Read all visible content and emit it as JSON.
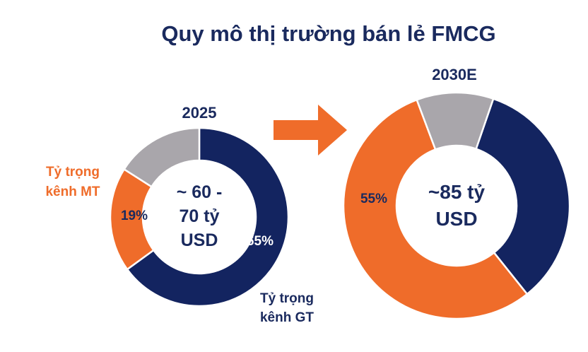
{
  "title": "Quy mô thị trường bán lẻ FMCG",
  "colors": {
    "gt": "#132460",
    "mt": "#ef6c2a",
    "other": "#a9a6ab",
    "text": "#1a2a5e",
    "arrow": "#ef6c2a"
  },
  "chart_data": [
    {
      "type": "pie",
      "title": "2025",
      "center_lines": [
        "~ 60 -",
        "70 tỷ",
        "USD"
      ],
      "slices": [
        {
          "key": "gt",
          "value": 65,
          "label": "65%"
        },
        {
          "key": "mt",
          "value": 19,
          "label": "19%"
        },
        {
          "key": "other",
          "value": 16,
          "label": ""
        }
      ],
      "annotations": {
        "mt": [
          "Tỷ trọng",
          "kênh MT"
        ],
        "gt": [
          "Tỷ trọng",
          "kênh GT"
        ]
      }
    },
    {
      "type": "pie",
      "title": "2030E",
      "center_lines": [
        "~85 tỷ",
        "USD"
      ],
      "slices": [
        {
          "key": "gt",
          "value": 34,
          "label": ""
        },
        {
          "key": "mt",
          "value": 55,
          "label": "55%"
        },
        {
          "key": "other",
          "value": 11,
          "label": ""
        }
      ]
    }
  ]
}
